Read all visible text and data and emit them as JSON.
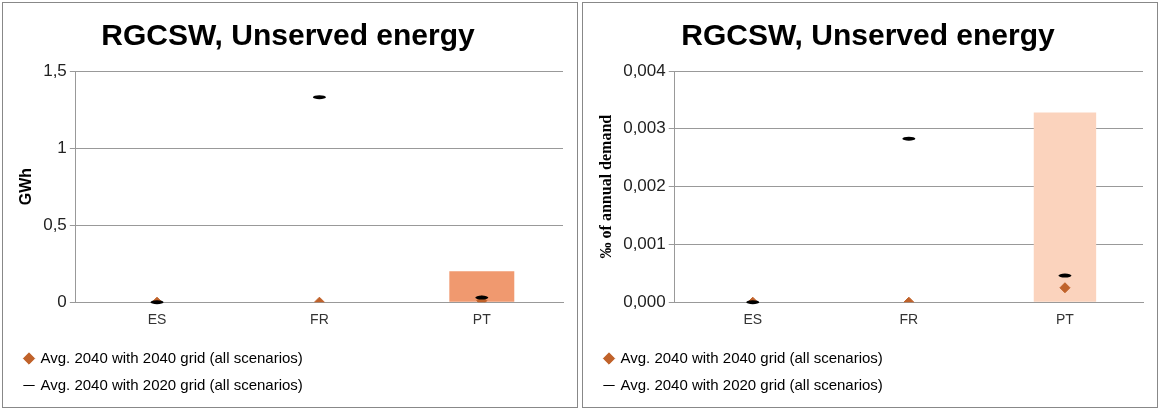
{
  "chart_data": [
    {
      "type": "bar",
      "title": "RGCSW, Unserved energy",
      "ylabel": "GWh",
      "categories": [
        "ES",
        "FR",
        "PT"
      ],
      "ylim": [
        0,
        1.5
      ],
      "yticks": [
        0,
        {
          "value": 0.5,
          "label": "0,5"
        },
        1,
        {
          "value": 1.5,
          "label": "1,5"
        }
      ],
      "grid": "y",
      "legend": "bottom",
      "series": [
        {
          "color": "#f0996f",
          "values": [
            null,
            null,
            0.2
          ]
        },
        {
          "type": "scatter",
          "name": "Avg. 2040 with 2040 grid (all scenarios)",
          "color": "#c0622a",
          "marker": "diamond",
          "values": [
            0,
            0,
            0.01
          ]
        },
        {
          "type": "scatter",
          "name": "Avg. 2040 with 2020 grid (all scenarios)",
          "color": "#000000",
          "values": [
            0,
            1.33,
            0.03
          ]
        }
      ]
    },
    {
      "type": "bar",
      "title": "RGCSW, Unserved energy",
      "ylabel": "‰ of annual demand",
      "categories": [
        "ES",
        "FR",
        "PT"
      ],
      "ylim": [
        0,
        0.004
      ],
      "yticks": [
        {
          "value": 0,
          "label": "0,000"
        },
        {
          "value": 0.001,
          "label": "0,001"
        },
        {
          "value": 0.002,
          "label": "0,002"
        },
        {
          "value": 0.003,
          "label": "0,003"
        },
        {
          "value": 0.004,
          "label": "0,004"
        }
      ],
      "grid": "y",
      "legend": "bottom",
      "series": [
        {
          "color": "#fbd3bd",
          "values": [
            null,
            null,
            0.00328
          ]
        },
        {
          "type": "scatter",
          "name": "Avg. 2040 with 2040 grid (all scenarios)",
          "color": "#c0622a",
          "marker": "diamond",
          "values": [
            0,
            0,
            0.00025
          ]
        },
        {
          "type": "scatter",
          "name": "Avg. 2040 with 2020 grid (all scenarios)",
          "color": "#000000",
          "values": [
            0,
            0.00283,
            0.00046
          ]
        }
      ]
    }
  ]
}
